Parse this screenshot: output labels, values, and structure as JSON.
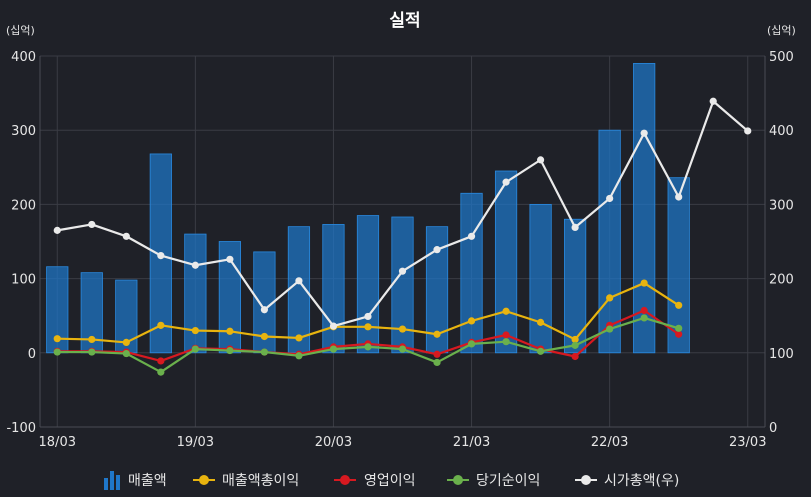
{
  "chart_data": {
    "type": "bar",
    "title": "실적",
    "left_unit": "(십억)",
    "right_unit": "(십억)",
    "x_tick_labels": [
      "18/03",
      "19/03",
      "20/03",
      "21/03",
      "22/03",
      "23/03"
    ],
    "left_ticks": [
      "-100",
      "0",
      "100",
      "200",
      "300",
      "400"
    ],
    "right_ticks": [
      "0",
      "100",
      "200",
      "300",
      "400",
      "500"
    ],
    "ylim_left": [
      -100,
      400
    ],
    "ylim_right": [
      0,
      500
    ],
    "grid": true,
    "legend_position": "bottom",
    "bar_count": 19,
    "line_count": 21,
    "series": [
      {
        "name": "매출액",
        "type": "bar",
        "axis": "left",
        "color": "#1f77c9",
        "values": [
          116,
          108,
          98,
          268,
          160,
          150,
          136,
          170,
          173,
          185,
          183,
          170,
          215,
          245,
          200,
          180,
          300,
          390,
          236
        ]
      },
      {
        "name": "매출액총이익",
        "type": "line",
        "axis": "left",
        "color": "#e8b40f",
        "values": [
          19,
          18,
          14,
          37,
          30,
          29,
          22,
          20,
          35,
          35,
          32,
          25,
          43,
          56,
          41,
          18,
          74,
          94,
          64,
          null,
          null
        ]
      },
      {
        "name": "영업이익",
        "type": "line",
        "axis": "left",
        "color": "#d71920",
        "values": [
          2,
          2,
          1,
          -11,
          6,
          5,
          1,
          -2,
          8,
          12,
          8,
          -2,
          14,
          24,
          5,
          -5,
          37,
          57,
          25,
          null,
          null
        ]
      },
      {
        "name": "당기순이익",
        "type": "line",
        "axis": "left",
        "color": "#6ab04c",
        "values": [
          1,
          1,
          -1,
          -26,
          5,
          3,
          1,
          -4,
          5,
          8,
          5,
          -13,
          12,
          15,
          2,
          10,
          32,
          47,
          33,
          null,
          null
        ]
      },
      {
        "name": "시가총액(우)",
        "type": "line",
        "axis": "right",
        "color": "#eaeaea",
        "values": [
          265,
          273,
          257,
          231,
          218,
          226,
          158,
          197,
          136,
          149,
          210,
          239,
          257,
          330,
          360,
          269,
          308,
          396,
          310,
          439,
          399
        ]
      }
    ]
  }
}
